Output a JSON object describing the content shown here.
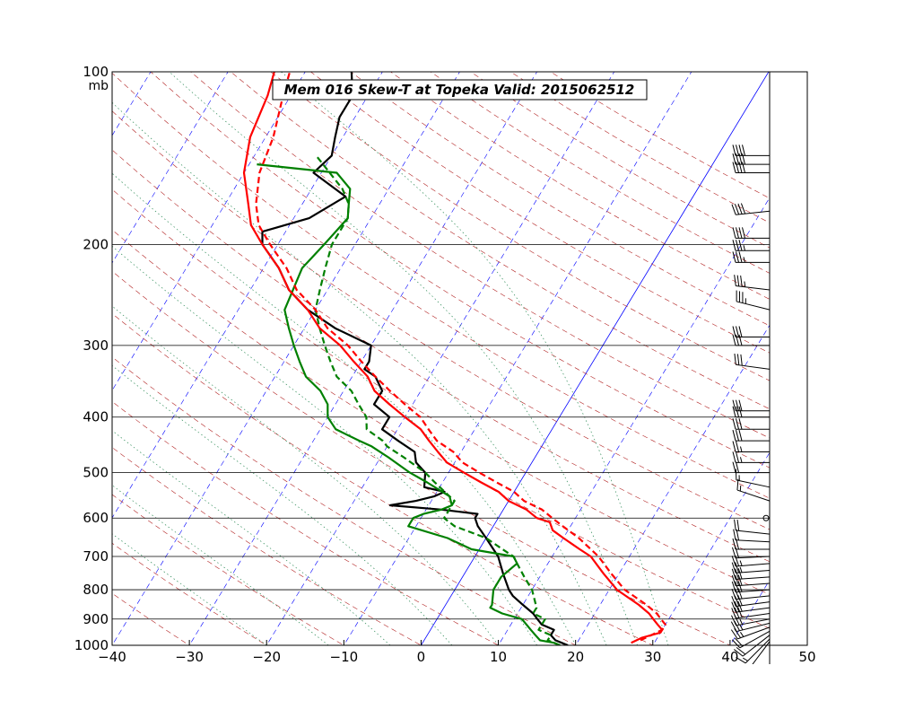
{
  "chart_data": {
    "type": "line",
    "title": "Mem 016  Skew-T at Topeka   Valid: 2015062512",
    "pressure_unit": "mb",
    "xlim": [
      -40,
      50
    ],
    "plim": [
      1000,
      100
    ],
    "x_ticks": [
      "−40",
      "−30",
      "−20",
      "−10",
      "0",
      "10",
      "20",
      "30",
      "40",
      "50"
    ],
    "x_tick_values": [
      -40,
      -30,
      -20,
      -10,
      0,
      10,
      20,
      30,
      40,
      50
    ],
    "p_ticks": [
      "100",
      "200",
      "300",
      "400",
      "500",
      "600",
      "700",
      "800",
      "900",
      "1000"
    ],
    "p_tick_values": [
      100,
      200,
      300,
      400,
      500,
      600,
      700,
      800,
      900,
      1000
    ],
    "grid": true,
    "series": [
      {
        "role": "temperature",
        "style": "solid",
        "color": "#000000",
        "points": [
          [
            1000,
            19
          ],
          [
            990,
            18
          ],
          [
            980,
            17
          ],
          [
            960,
            16
          ],
          [
            940,
            16
          ],
          [
            920,
            14
          ],
          [
            900,
            13
          ],
          [
            880,
            12
          ],
          [
            850,
            10
          ],
          [
            820,
            8
          ],
          [
            800,
            7
          ],
          [
            750,
            5
          ],
          [
            700,
            3
          ],
          [
            650,
            0
          ],
          [
            620,
            -2
          ],
          [
            600,
            -3
          ],
          [
            590,
            -3
          ],
          [
            580,
            -8
          ],
          [
            570,
            -15
          ],
          [
            560,
            -12
          ],
          [
            550,
            -10
          ],
          [
            540,
            -9
          ],
          [
            530,
            -12
          ],
          [
            500,
            -13
          ],
          [
            480,
            -15
          ],
          [
            460,
            -16
          ],
          [
            440,
            -19
          ],
          [
            420,
            -22
          ],
          [
            400,
            -22
          ],
          [
            380,
            -25
          ],
          [
            360,
            -25
          ],
          [
            340,
            -27
          ],
          [
            330,
            -29
          ],
          [
            320,
            -29
          ],
          [
            300,
            -30
          ],
          [
            280,
            -36
          ],
          [
            260,
            -41
          ],
          [
            240,
            -45
          ],
          [
            220,
            -48
          ],
          [
            200,
            -52
          ],
          [
            190,
            -53
          ],
          [
            180,
            -48
          ],
          [
            165,
            -45
          ],
          [
            150,
            -51
          ],
          [
            140,
            -50
          ],
          [
            130,
            -51
          ],
          [
            120,
            -52
          ],
          [
            110,
            -52
          ],
          [
            100,
            -54
          ]
        ]
      },
      {
        "role": "dewpoint",
        "style": "solid",
        "color": "#008000",
        "points": [
          [
            1000,
            18
          ],
          [
            990,
            17
          ],
          [
            980,
            15
          ],
          [
            960,
            14
          ],
          [
            940,
            13
          ],
          [
            900,
            11
          ],
          [
            880,
            8
          ],
          [
            860,
            6
          ],
          [
            850,
            6
          ],
          [
            800,
            5
          ],
          [
            760,
            5
          ],
          [
            720,
            6
          ],
          [
            700,
            5
          ],
          [
            680,
            -1
          ],
          [
            650,
            -5
          ],
          [
            620,
            -11
          ],
          [
            600,
            -11
          ],
          [
            590,
            -10
          ],
          [
            580,
            -8
          ],
          [
            570,
            -7
          ],
          [
            550,
            -8
          ],
          [
            520,
            -12
          ],
          [
            500,
            -15
          ],
          [
            470,
            -19
          ],
          [
            450,
            -22
          ],
          [
            440,
            -24
          ],
          [
            420,
            -28
          ],
          [
            400,
            -30
          ],
          [
            380,
            -31
          ],
          [
            360,
            -33
          ],
          [
            340,
            -36
          ],
          [
            320,
            -38
          ],
          [
            300,
            -40
          ],
          [
            280,
            -42
          ],
          [
            260,
            -44
          ],
          [
            220,
            -45
          ],
          [
            200,
            -44
          ],
          [
            180,
            -43
          ],
          [
            170,
            -44
          ],
          [
            160,
            -45
          ],
          [
            150,
            -48
          ],
          [
            145,
            -59
          ]
        ]
      },
      {
        "role": "dewpoint-dashed",
        "style": "dashed",
        "color": "#008000",
        "points": [
          [
            1000,
            18
          ],
          [
            990,
            17
          ],
          [
            980,
            16
          ],
          [
            960,
            16
          ],
          [
            940,
            14
          ],
          [
            900,
            14
          ],
          [
            880,
            12
          ],
          [
            860,
            12
          ],
          [
            800,
            10
          ],
          [
            760,
            8
          ],
          [
            720,
            6
          ],
          [
            700,
            5
          ],
          [
            680,
            3
          ],
          [
            650,
            0
          ],
          [
            620,
            -5
          ],
          [
            600,
            -7
          ],
          [
            590,
            -7
          ],
          [
            580,
            -7
          ],
          [
            560,
            -7
          ],
          [
            550,
            -8
          ],
          [
            520,
            -11
          ],
          [
            500,
            -13
          ],
          [
            470,
            -17
          ],
          [
            450,
            -20
          ],
          [
            440,
            -21
          ],
          [
            420,
            -24
          ],
          [
            400,
            -25
          ],
          [
            380,
            -27
          ],
          [
            360,
            -29
          ],
          [
            340,
            -32
          ],
          [
            320,
            -34
          ],
          [
            300,
            -36
          ],
          [
            280,
            -38
          ],
          [
            260,
            -40
          ],
          [
            240,
            -41
          ],
          [
            220,
            -42
          ],
          [
            200,
            -43
          ],
          [
            180,
            -43
          ],
          [
            170,
            -44
          ],
          [
            160,
            -46
          ],
          [
            140,
            -52
          ]
        ]
      },
      {
        "role": "parcel",
        "style": "solid",
        "color": "#ff0000",
        "points": [
          [
            990,
            27
          ],
          [
            970,
            28
          ],
          [
            950,
            30
          ],
          [
            940,
            30
          ],
          [
            920,
            29
          ],
          [
            900,
            28
          ],
          [
            880,
            27
          ],
          [
            850,
            25
          ],
          [
            800,
            21
          ],
          [
            750,
            18
          ],
          [
            700,
            15
          ],
          [
            680,
            13
          ],
          [
            650,
            10
          ],
          [
            630,
            8
          ],
          [
            610,
            7
          ],
          [
            600,
            5
          ],
          [
            580,
            3
          ],
          [
            560,
            0
          ],
          [
            540,
            -2
          ],
          [
            520,
            -5
          ],
          [
            500,
            -8
          ],
          [
            480,
            -11
          ],
          [
            460,
            -13
          ],
          [
            440,
            -15
          ],
          [
            420,
            -17
          ],
          [
            400,
            -20
          ],
          [
            380,
            -23
          ],
          [
            360,
            -26
          ],
          [
            340,
            -28
          ],
          [
            320,
            -31
          ],
          [
            300,
            -34
          ],
          [
            280,
            -38
          ],
          [
            260,
            -41
          ],
          [
            240,
            -45
          ],
          [
            220,
            -48
          ],
          [
            200,
            -52
          ],
          [
            185,
            -55
          ],
          [
            170,
            -57
          ],
          [
            150,
            -60
          ],
          [
            130,
            -62
          ],
          [
            110,
            -63
          ],
          [
            100,
            -64
          ]
        ]
      },
      {
        "role": "parcel-dashed",
        "style": "dashed",
        "color": "#ff0000",
        "points": [
          [
            980,
            28
          ],
          [
            960,
            29
          ],
          [
            940,
            30
          ],
          [
            920,
            30
          ],
          [
            900,
            29
          ],
          [
            880,
            28
          ],
          [
            850,
            26
          ],
          [
            800,
            22
          ],
          [
            750,
            19
          ],
          [
            700,
            16
          ],
          [
            650,
            12
          ],
          [
            620,
            9
          ],
          [
            600,
            7
          ],
          [
            580,
            5
          ],
          [
            560,
            2
          ],
          [
            540,
            0
          ],
          [
            520,
            -3
          ],
          [
            500,
            -6
          ],
          [
            480,
            -9
          ],
          [
            460,
            -11
          ],
          [
            440,
            -14
          ],
          [
            420,
            -16
          ],
          [
            400,
            -18
          ],
          [
            380,
            -21
          ],
          [
            360,
            -24
          ],
          [
            340,
            -27
          ],
          [
            320,
            -30
          ],
          [
            300,
            -33
          ],
          [
            280,
            -37
          ],
          [
            260,
            -40
          ],
          [
            240,
            -44
          ],
          [
            220,
            -47
          ],
          [
            200,
            -51
          ],
          [
            185,
            -54
          ],
          [
            170,
            -56
          ],
          [
            150,
            -58
          ],
          [
            130,
            -59
          ],
          [
            110,
            -61
          ],
          [
            100,
            -62
          ]
        ]
      }
    ],
    "wind_barbs": [
      {
        "p": 995,
        "u": 0,
        "v": 6
      },
      {
        "p": 985,
        "u": 6,
        "v": 8
      },
      {
        "p": 975,
        "u": 10,
        "v": 10
      },
      {
        "p": 960,
        "u": 14,
        "v": 11
      },
      {
        "p": 945,
        "u": 18,
        "v": 10
      },
      {
        "p": 930,
        "u": 22,
        "v": 8
      },
      {
        "p": 915,
        "u": 24,
        "v": 6
      },
      {
        "p": 900,
        "u": 26,
        "v": 5
      },
      {
        "p": 880,
        "u": 28,
        "v": 4
      },
      {
        "p": 860,
        "u": 30,
        "v": 4
      },
      {
        "p": 840,
        "u": 30,
        "v": 4
      },
      {
        "p": 820,
        "u": 30,
        "v": 3
      },
      {
        "p": 800,
        "u": 28,
        "v": 2
      },
      {
        "p": 780,
        "u": 28,
        "v": 2
      },
      {
        "p": 760,
        "u": 28,
        "v": 2
      },
      {
        "p": 740,
        "u": 26,
        "v": 2
      },
      {
        "p": 720,
        "u": 24,
        "v": 2
      },
      {
        "p": 700,
        "u": 22,
        "v": 1
      },
      {
        "p": 680,
        "u": 20,
        "v": 0
      },
      {
        "p": 660,
        "u": 20,
        "v": -1
      },
      {
        "p": 640,
        "u": 18,
        "v": -2
      },
      {
        "p": 600,
        "u": 0,
        "v": 0
      },
      {
        "p": 560,
        "u": 12,
        "v": -4
      },
      {
        "p": 530,
        "u": 14,
        "v": -3
      },
      {
        "p": 500,
        "u": 22,
        "v": 0
      },
      {
        "p": 480,
        "u": 24,
        "v": 0
      },
      {
        "p": 460,
        "u": 26,
        "v": 0
      },
      {
        "p": 440,
        "u": 28,
        "v": 0
      },
      {
        "p": 420,
        "u": 30,
        "v": 0
      },
      {
        "p": 400,
        "u": 30,
        "v": 0
      },
      {
        "p": 390,
        "u": 30,
        "v": 0
      },
      {
        "p": 330,
        "u": 30,
        "v": -4
      },
      {
        "p": 300,
        "u": 30,
        "v": 0
      },
      {
        "p": 290,
        "u": 30,
        "v": 0
      },
      {
        "p": 260,
        "u": 32,
        "v": -8
      },
      {
        "p": 240,
        "u": 34,
        "v": -4
      },
      {
        "p": 215,
        "u": 36,
        "v": 0
      },
      {
        "p": 205,
        "u": 36,
        "v": 0
      },
      {
        "p": 195,
        "u": 38,
        "v": 0
      },
      {
        "p": 175,
        "u": 38,
        "v": 4
      },
      {
        "p": 150,
        "u": 40,
        "v": 0
      },
      {
        "p": 145,
        "u": 40,
        "v": 0
      },
      {
        "p": 140,
        "u": 40,
        "v": 0
      }
    ]
  }
}
